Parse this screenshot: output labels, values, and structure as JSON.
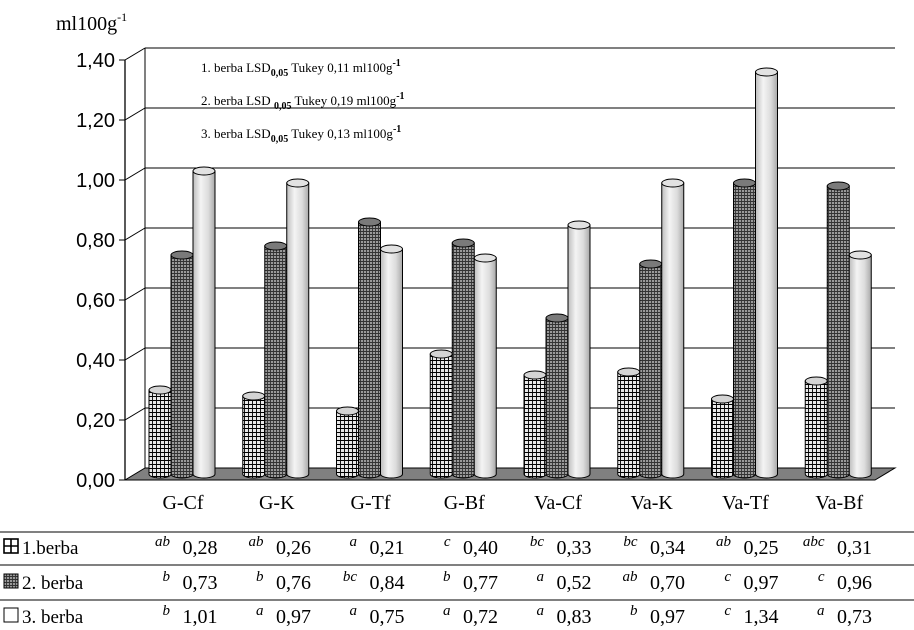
{
  "chart_data": {
    "type": "bar",
    "ylabel": "ml100g",
    "ylabel_sup": "-1",
    "ylim": [
      0,
      1.4
    ],
    "yticks": [
      "0,00",
      "0,20",
      "0,40",
      "0,60",
      "0,80",
      "1,00",
      "1,20",
      "1,40"
    ],
    "grid": true,
    "categories": [
      "G-Cf",
      "G-K",
      "G-Tf",
      "G-Bf",
      "Va-Cf",
      "Va-K",
      "Va-Tf",
      "Va-Bf"
    ],
    "series": [
      {
        "name": "1.berba",
        "values": [
          0.28,
          0.26,
          0.21,
          0.4,
          0.33,
          0.34,
          0.25,
          0.31
        ],
        "labels": [
          "0,28",
          "0,26",
          "0,21",
          "0,40",
          "0,33",
          "0,34",
          "0,25",
          "0,31"
        ],
        "letters": [
          "ab",
          "ab",
          "a",
          "c",
          "bc",
          "bc",
          "ab",
          "abc"
        ]
      },
      {
        "name": "2. berba",
        "values": [
          0.73,
          0.76,
          0.84,
          0.77,
          0.52,
          0.7,
          0.97,
          0.96
        ],
        "labels": [
          "0,73",
          "0,76",
          "0,84",
          "0,77",
          "0,52",
          "0,70",
          "0,97",
          "0,96"
        ],
        "letters": [
          "b",
          "b",
          "bc",
          "b",
          "a",
          "ab",
          "c",
          "c"
        ]
      },
      {
        "name": "3. berba",
        "values": [
          1.01,
          0.97,
          0.75,
          0.72,
          0.83,
          0.97,
          1.34,
          0.73
        ],
        "labels": [
          "1,01",
          "0,97",
          "0,75",
          "0,72",
          "0,83",
          "0,97",
          "1,34",
          "0,73"
        ],
        "letters": [
          "b",
          "a",
          "a",
          "a",
          "a",
          "b",
          "c",
          "a"
        ]
      }
    ],
    "annotations": [
      {
        "prefix": "1. berba LSD",
        "sub": "0,05",
        "text": " Tukey  0,11 ml100g",
        "sup": "-1"
      },
      {
        "prefix": "2. berba LSD ",
        "sub": "0,05",
        "text": " Tukey  0,19 ml100g",
        "sup": "-1"
      },
      {
        "prefix": "3. berba LSD",
        "sub": "0,05",
        "text": " Tukey  0,13 ml100g",
        "sup": "-1"
      }
    ],
    "colors": {
      "floor": "#808080",
      "bar1_fill": "#d4d4d4",
      "bar2_fill": "#7a7a7a",
      "bar3_fill": "#e2e2e2",
      "outline": "#000000"
    }
  }
}
